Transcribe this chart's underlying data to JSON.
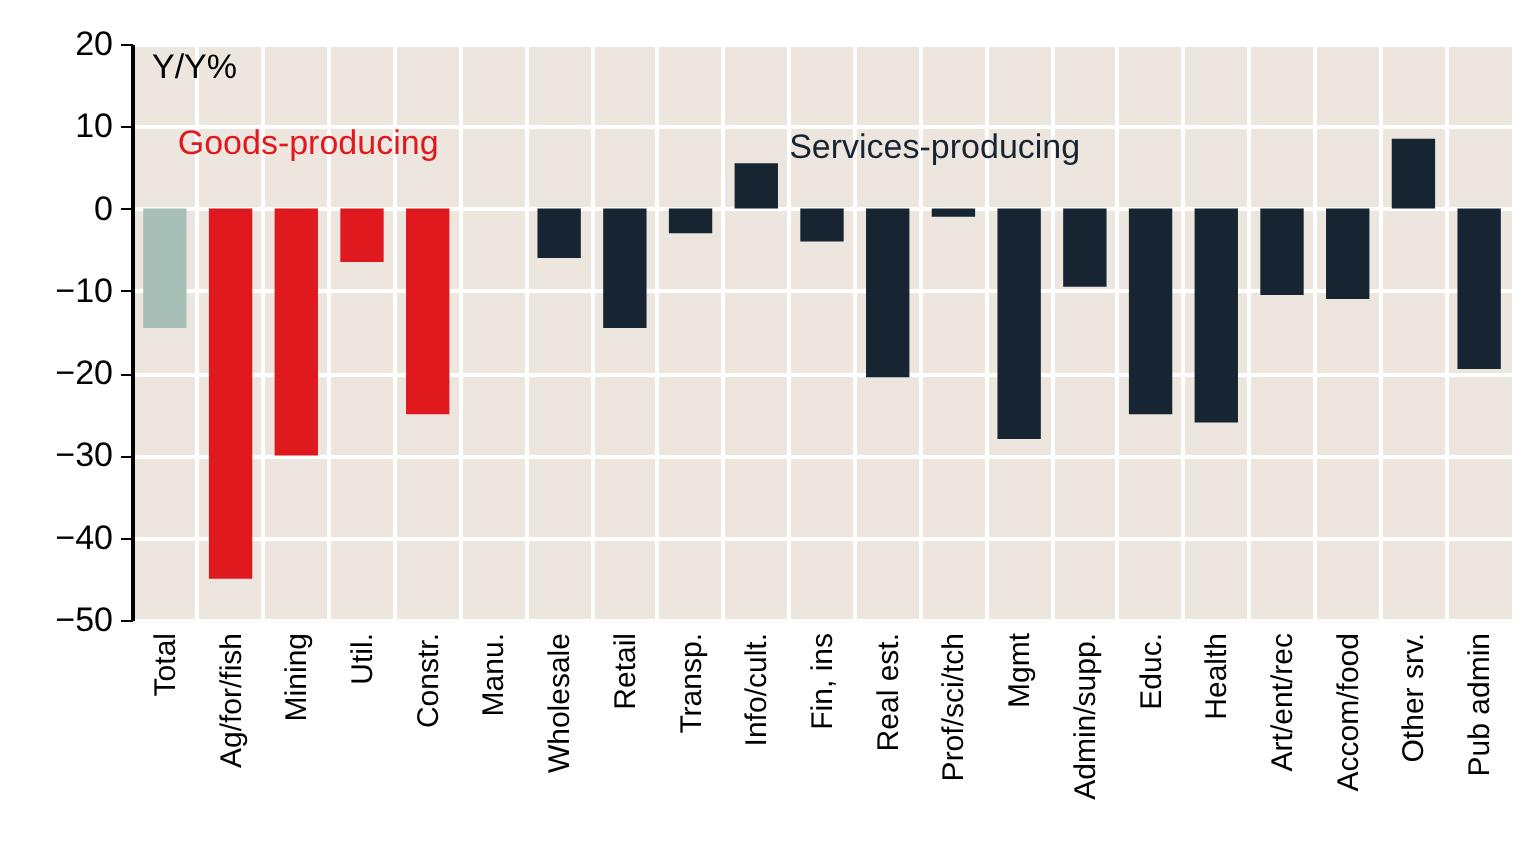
{
  "chart_data": {
    "type": "bar",
    "categories": [
      "Total",
      "Ag/for/fish",
      "Mining",
      "Util.",
      "Constr.",
      "Manu.",
      "Wholesale",
      "Retail",
      "Transp.",
      "Info/cult.",
      "Fin, ins",
      "Real est.",
      "Prof/sci/tch",
      "Mgmt",
      "Admin/supp.",
      "Educ.",
      "Health",
      "Art/ent/rec",
      "Accom/food",
      "Other srv.",
      "Pub admin"
    ],
    "values": [
      -14.5,
      -45,
      -30,
      -6.5,
      -25,
      null,
      -6,
      -14.5,
      -3,
      5.5,
      -4,
      -20.5,
      -1,
      -28,
      -9.5,
      -25,
      -26,
      -10.5,
      -11,
      8.5,
      -19.5
    ],
    "colors": [
      "#a8bfb8",
      "#e0191f",
      "#e0191f",
      "#e0191f",
      "#e0191f",
      "#e0191f",
      "#172532",
      "#172532",
      "#172532",
      "#172532",
      "#172532",
      "#172532",
      "#172532",
      "#172532",
      "#172532",
      "#172532",
      "#172532",
      "#172532",
      "#172532",
      "#172532",
      "#172532"
    ],
    "ylim": [
      -50,
      20
    ],
    "yticks": [
      -50,
      -40,
      -30,
      -20,
      -10,
      0,
      10,
      20
    ],
    "grid": true,
    "annotations": [
      "Y/Y%",
      "Goods-producing",
      "Services-producing"
    ]
  }
}
